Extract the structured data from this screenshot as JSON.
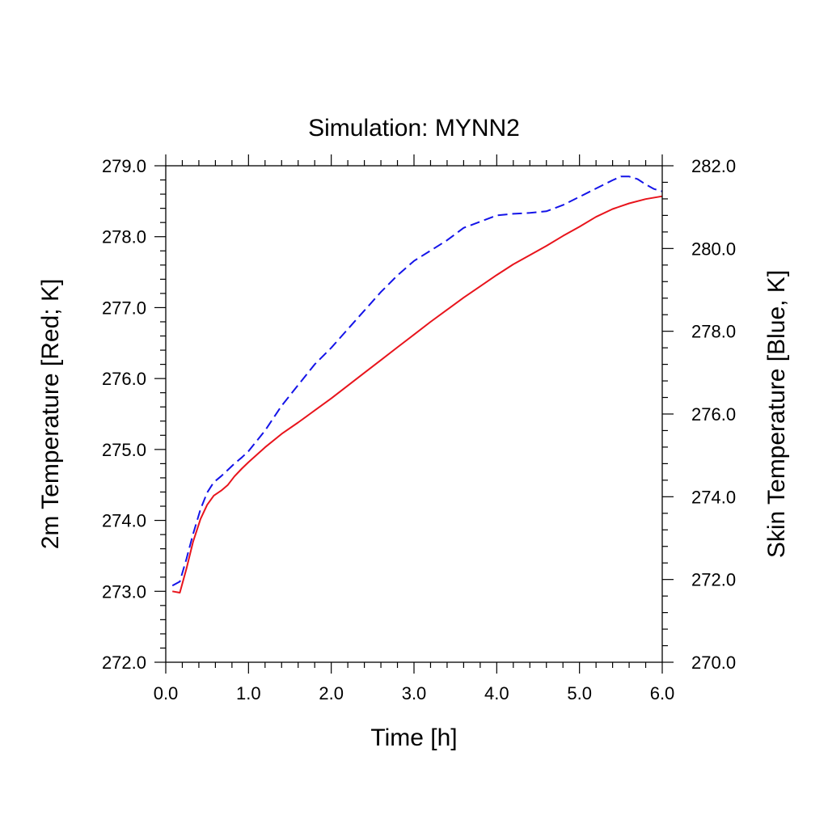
{
  "chart_data": {
    "type": "line",
    "title": "Simulation: MYNN2",
    "xlabel": "Time [h]",
    "ylabel": "2m Temperature [Red; K]",
    "y2label": "Skin Temperature [Blue, K]",
    "xlim": [
      0.0,
      6.0
    ],
    "ylim": [
      272.0,
      279.0
    ],
    "y2lim": [
      270.0,
      282.0
    ],
    "x_ticks": [
      "0.0",
      "1.0",
      "2.0",
      "3.0",
      "4.0",
      "5.0",
      "6.0"
    ],
    "y_ticks": [
      "272.0",
      "273.0",
      "274.0",
      "275.0",
      "276.0",
      "277.0",
      "278.0",
      "279.0"
    ],
    "y2_ticks": [
      "270.0",
      "272.0",
      "274.0",
      "276.0",
      "278.0",
      "280.0",
      "282.0"
    ],
    "grid": false,
    "legend": "none",
    "series": [
      {
        "axis": "left",
        "color": "#e8141c",
        "style": "solid",
        "points": [
          [
            0.08,
            273.0
          ],
          [
            0.17,
            272.98
          ],
          [
            0.25,
            273.32
          ],
          [
            0.33,
            273.7
          ],
          [
            0.42,
            274.02
          ],
          [
            0.5,
            274.22
          ],
          [
            0.58,
            274.35
          ],
          [
            0.67,
            274.42
          ],
          [
            0.75,
            274.5
          ],
          [
            0.83,
            274.62
          ],
          [
            0.92,
            274.73
          ],
          [
            1.0,
            274.82
          ],
          [
            1.2,
            275.03
          ],
          [
            1.4,
            275.22
          ],
          [
            1.6,
            275.38
          ],
          [
            1.8,
            275.55
          ],
          [
            2.0,
            275.72
          ],
          [
            2.2,
            275.9
          ],
          [
            2.4,
            276.08
          ],
          [
            2.6,
            276.26
          ],
          [
            2.8,
            276.44
          ],
          [
            3.0,
            276.62
          ],
          [
            3.2,
            276.8
          ],
          [
            3.4,
            276.97
          ],
          [
            3.6,
            277.14
          ],
          [
            3.8,
            277.3
          ],
          [
            4.0,
            277.46
          ],
          [
            4.2,
            277.61
          ],
          [
            4.4,
            277.74
          ],
          [
            4.6,
            277.87
          ],
          [
            4.8,
            278.01
          ],
          [
            5.0,
            278.14
          ],
          [
            5.2,
            278.28
          ],
          [
            5.4,
            278.39
          ],
          [
            5.6,
            278.47
          ],
          [
            5.8,
            278.53
          ],
          [
            6.0,
            278.57
          ]
        ]
      },
      {
        "axis": "right",
        "color": "#1414e8",
        "style": "dashed",
        "points": [
          [
            0.08,
            271.85
          ],
          [
            0.17,
            271.95
          ],
          [
            0.25,
            272.5
          ],
          [
            0.33,
            273.1
          ],
          [
            0.42,
            273.7
          ],
          [
            0.5,
            274.1
          ],
          [
            0.58,
            274.35
          ],
          [
            0.67,
            274.5
          ],
          [
            0.75,
            274.65
          ],
          [
            0.83,
            274.8
          ],
          [
            0.92,
            274.95
          ],
          [
            1.0,
            275.1
          ],
          [
            1.2,
            275.6
          ],
          [
            1.4,
            276.2
          ],
          [
            1.6,
            276.7
          ],
          [
            1.8,
            277.2
          ],
          [
            2.0,
            277.6
          ],
          [
            2.2,
            278.05
          ],
          [
            2.4,
            278.5
          ],
          [
            2.6,
            278.95
          ],
          [
            2.8,
            279.35
          ],
          [
            3.0,
            279.7
          ],
          [
            3.2,
            279.95
          ],
          [
            3.4,
            280.2
          ],
          [
            3.6,
            280.5
          ],
          [
            3.8,
            280.65
          ],
          [
            4.0,
            280.8
          ],
          [
            4.2,
            280.84
          ],
          [
            4.4,
            280.86
          ],
          [
            4.6,
            280.9
          ],
          [
            4.8,
            281.05
          ],
          [
            5.0,
            281.25
          ],
          [
            5.2,
            281.45
          ],
          [
            5.4,
            281.65
          ],
          [
            5.5,
            281.74
          ],
          [
            5.6,
            281.74
          ],
          [
            5.7,
            281.68
          ],
          [
            5.8,
            281.55
          ],
          [
            5.9,
            281.44
          ],
          [
            6.0,
            281.38
          ]
        ]
      }
    ]
  }
}
